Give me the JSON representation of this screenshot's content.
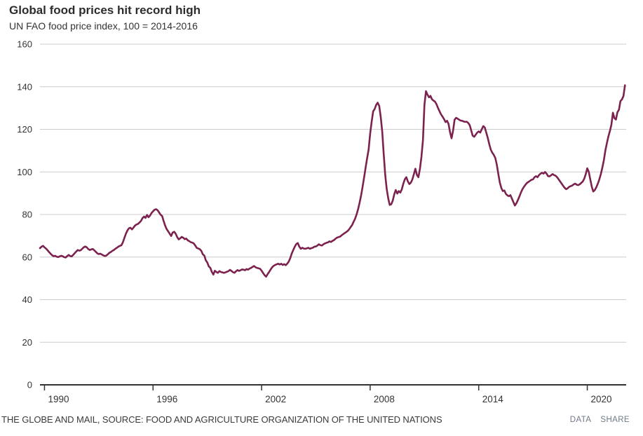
{
  "header": {
    "title": "Global food prices hit record high",
    "subtitle": "UN FAO food price index, 100 = 2014-2016"
  },
  "footer": {
    "source": "THE GLOBE AND MAIL, SOURCE: FOOD AND AGRICULTURE ORGANIZATION OF THE UNITED NATIONS",
    "links": [
      "DATA",
      "SHARE"
    ]
  },
  "colors": {
    "line": "#7c224f",
    "grid": "#cccccc",
    "axis": "#333333",
    "tick_text": "#333333",
    "footer_links": "#6e7987"
  },
  "chart_data": {
    "type": "line",
    "title": "Global food prices hit record high",
    "subtitle": "UN FAO food price index, 100 = 2014-2016",
    "series_name": "UN FAO food price index (monthly)",
    "frequency": "monthly",
    "start_year": 1989,
    "start_month": 10,
    "xlim": [
      1989.75,
      2022.15
    ],
    "ylim": [
      0,
      160
    ],
    "x_ticks": [
      1990,
      1996,
      2002,
      2008,
      2014,
      2020
    ],
    "y_ticks": [
      0,
      20,
      40,
      60,
      80,
      100,
      120,
      140,
      160
    ],
    "grid": "horizontal",
    "legend": "none",
    "values": [
      64.2,
      64.9,
      65.3,
      64.6,
      64.0,
      63.2,
      62.4,
      61.6,
      60.9,
      60.4,
      60.6,
      60.2,
      60.0,
      60.3,
      60.6,
      60.4,
      60.0,
      59.8,
      60.4,
      61.0,
      60.5,
      60.3,
      61.0,
      61.8,
      62.6,
      63.3,
      63.0,
      63.2,
      63.9,
      64.6,
      65.0,
      64.6,
      63.8,
      63.3,
      63.6,
      63.8,
      63.2,
      62.5,
      61.8,
      61.4,
      61.6,
      61.2,
      60.8,
      60.5,
      60.7,
      61.3,
      62.0,
      62.4,
      62.9,
      63.3,
      63.9,
      64.4,
      64.9,
      65.3,
      65.5,
      67.0,
      69.0,
      71.0,
      72.5,
      73.5,
      73.8,
      73.0,
      73.8,
      74.8,
      75.3,
      75.6,
      76.2,
      77.0,
      78.3,
      79.0,
      78.4,
      79.8,
      78.7,
      79.5,
      80.7,
      81.5,
      82.2,
      82.5,
      82.0,
      81.0,
      79.9,
      79.3,
      77.0,
      74.8,
      73.2,
      72.1,
      71.0,
      69.9,
      71.5,
      71.9,
      71.0,
      69.4,
      68.3,
      68.8,
      69.5,
      69.1,
      68.4,
      68.7,
      67.9,
      67.5,
      67.0,
      66.8,
      66.4,
      65.4,
      64.3,
      64.0,
      63.7,
      62.9,
      61.3,
      60.7,
      58.5,
      57.4,
      55.6,
      54.9,
      53.0,
      51.8,
      53.6,
      53.0,
      52.6,
      53.4,
      53.0,
      52.8,
      52.6,
      52.8,
      53.1,
      53.4,
      54.0,
      53.5,
      52.9,
      52.6,
      53.3,
      53.9,
      53.5,
      53.8,
      54.2,
      54.1,
      53.8,
      54.4,
      54.1,
      54.6,
      54.9,
      55.4,
      55.8,
      55.2,
      54.9,
      54.7,
      54.5,
      53.6,
      52.5,
      51.5,
      50.8,
      52.0,
      53.0,
      54.2,
      55.2,
      55.9,
      56.3,
      56.6,
      56.9,
      56.5,
      56.9,
      56.3,
      56.7,
      56.2,
      56.9,
      57.9,
      59.5,
      61.7,
      63.3,
      64.9,
      66.1,
      66.6,
      64.9,
      63.9,
      64.4,
      64.0,
      63.9,
      64.1,
      64.4,
      63.9,
      64.2,
      64.4,
      64.9,
      65.0,
      65.4,
      66.0,
      65.6,
      65.4,
      66.0,
      66.4,
      66.7,
      66.9,
      67.4,
      67.1,
      67.6,
      68.0,
      68.6,
      69.1,
      69.4,
      69.6,
      70.2,
      70.7,
      71.2,
      71.7,
      72.2,
      73.0,
      74.0,
      75.0,
      76.5,
      78.0,
      80.0,
      82.5,
      85.5,
      89.0,
      93.0,
      97.5,
      102.0,
      106.5,
      110.5,
      118.0,
      123.5,
      128.5,
      129.5,
      131.5,
      132.5,
      131.0,
      126.0,
      119.0,
      108.5,
      98.5,
      92.0,
      87.5,
      84.5,
      84.8,
      86.5,
      89.5,
      91.5,
      89.8,
      91.0,
      90.3,
      91.8,
      94.5,
      96.5,
      97.5,
      95.5,
      94.3,
      95.0,
      96.5,
      99.0,
      101.5,
      98.5,
      97.5,
      101.5,
      107.0,
      115.0,
      131.5,
      137.9,
      136.3,
      135.0,
      135.7,
      134.1,
      133.5,
      133.0,
      131.8,
      130.0,
      128.5,
      127.0,
      126.0,
      124.8,
      123.4,
      124.0,
      122.5,
      118.5,
      115.8,
      119.5,
      124.5,
      125.4,
      125.0,
      124.5,
      124.1,
      124.0,
      123.7,
      123.5,
      123.6,
      123.0,
      122.0,
      119.5,
      117.0,
      116.5,
      117.5,
      118.5,
      119.0,
      118.5,
      120.0,
      121.5,
      120.9,
      118.5,
      116.0,
      113.0,
      110.5,
      109.0,
      108.0,
      106.5,
      103.4,
      99.0,
      95.0,
      92.4,
      91.0,
      91.3,
      89.7,
      89.0,
      88.6,
      89.1,
      87.5,
      85.8,
      84.2,
      85.3,
      86.8,
      88.5,
      90.3,
      91.9,
      93.0,
      94.0,
      94.8,
      95.3,
      95.8,
      96.3,
      96.5,
      97.5,
      98.0,
      97.5,
      98.5,
      99.2,
      99.6,
      99.2,
      100.0,
      99.2,
      98.0,
      97.9,
      98.4,
      99.0,
      98.5,
      98.2,
      97.5,
      96.5,
      95.5,
      94.5,
      93.5,
      92.5,
      91.9,
      92.3,
      93.0,
      93.3,
      93.6,
      94.2,
      94.5,
      94.0,
      93.8,
      94.2,
      94.8,
      95.5,
      96.8,
      99.0,
      101.7,
      100.0,
      96.5,
      93.0,
      90.8,
      91.5,
      92.8,
      94.5,
      96.5,
      99.0,
      102.0,
      105.5,
      110.0,
      113.5,
      116.6,
      119.2,
      122.1,
      127.8,
      125.3,
      124.6,
      128.0,
      129.2,
      133.2,
      134.1,
      135.6,
      140.7
    ]
  }
}
